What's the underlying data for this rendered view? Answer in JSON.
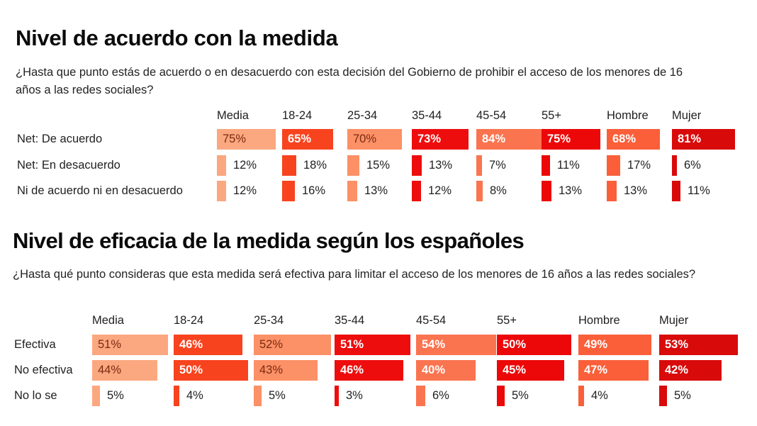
{
  "chart_data": [
    {
      "type": "table",
      "title": "Nivel de acuerdo con la medida",
      "subtitle": "¿Hasta que punto estás de acuerdo o en desacuerdo con esta decisión del Gobierno de prohibir el acceso de los menores de 16 años a las redes sociales?",
      "categories": [
        "Media",
        "18-24",
        "25-34",
        "35-44",
        "45-54",
        "55+",
        "Hombre",
        "Mujer"
      ],
      "category_colors": [
        "#FBA77F",
        "#F8431F",
        "#FC9066",
        "#EE0D0D",
        "#FA7450",
        "#EC0808",
        "#FA5F3A",
        "#D90A0A"
      ],
      "series": [
        {
          "name": "Net: De acuerdo",
          "values": [
            75,
            65,
            70,
            73,
            84,
            75,
            68,
            81
          ]
        },
        {
          "name": "Net: En desacuerdo",
          "values": [
            12,
            18,
            15,
            13,
            7,
            11,
            17,
            6
          ]
        },
        {
          "name": "Ni de acuerdo ni en desacuerdo",
          "values": [
            12,
            16,
            13,
            12,
            8,
            13,
            13,
            11
          ]
        }
      ],
      "unit": "%"
    },
    {
      "type": "table",
      "title": "Nivel de eficacia de la medida según los españoles",
      "subtitle": "¿Hasta qué punto consideras que esta medida será efectiva para limitar el acceso de los menores de 16 años a las redes sociales?",
      "categories": [
        "Media",
        "18-24",
        "25-34",
        "35-44",
        "45-54",
        "55+",
        "Hombre",
        "Mujer"
      ],
      "category_colors": [
        "#FBA77F",
        "#F8431F",
        "#FC9066",
        "#EE0D0D",
        "#FA7450",
        "#EC0808",
        "#FA5F3A",
        "#D90A0A"
      ],
      "series": [
        {
          "name": "Efectiva",
          "values": [
            51,
            46,
            52,
            51,
            54,
            50,
            49,
            53
          ]
        },
        {
          "name": "No efectiva",
          "values": [
            44,
            50,
            43,
            46,
            40,
            45,
            47,
            42
          ]
        },
        {
          "name": "No lo se",
          "values": [
            5,
            4,
            5,
            3,
            6,
            5,
            4,
            5
          ]
        }
      ],
      "unit": "%"
    }
  ]
}
